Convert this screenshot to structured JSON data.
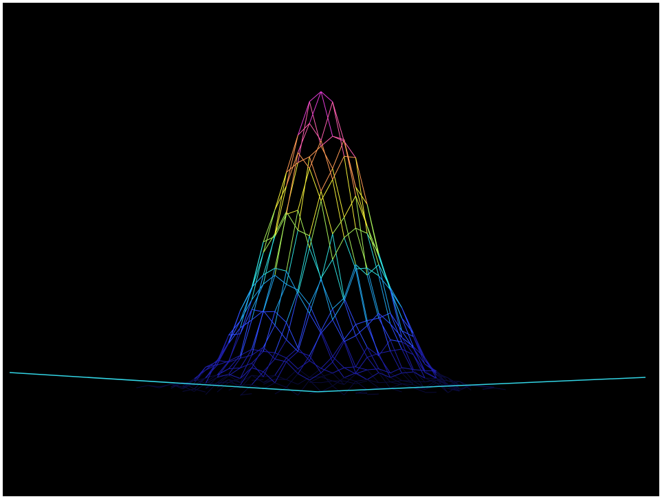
{
  "colors": {
    "background": "#000000",
    "frame": "#ffffff",
    "baseline": "#33d6e6",
    "colormap": [
      "#0a0a3a",
      "#1e1ea8",
      "#2f4cff",
      "#21a6f0",
      "#2fe0e0",
      "#a8f05a",
      "#f4f03a",
      "#ff9a55",
      "#ff5fb0",
      "#e43cd8"
    ]
  },
  "chart_data": {
    "type": "surface-wireframe",
    "title": "",
    "xlabel": "",
    "ylabel": "",
    "zlabel": "",
    "axes_visible": false,
    "grid": false,
    "legend": "none",
    "colormap": "height",
    "surface": {
      "shape": "gaussian",
      "peak_relative_height": 1.0,
      "noise": "moderate",
      "grid_rows": 28,
      "grid_cols": 28
    }
  }
}
